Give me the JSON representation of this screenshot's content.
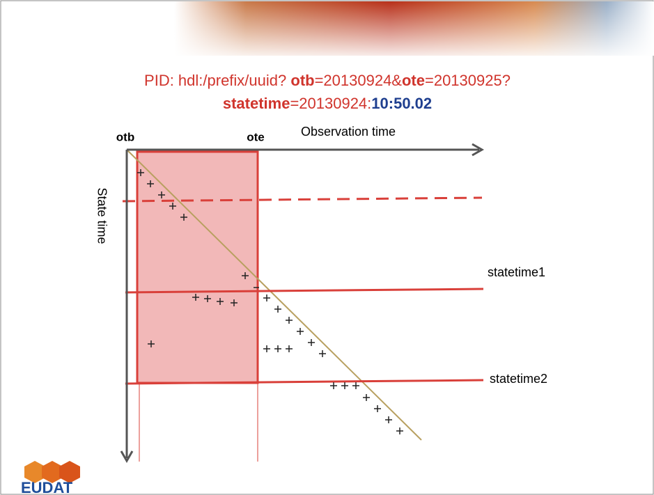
{
  "title": {
    "line1": [
      {
        "text": "PID: hdl:/prefix/uuid? ",
        "bold": false
      },
      {
        "text": "otb",
        "bold": true
      },
      {
        "text": "=20130924&",
        "bold": false
      },
      {
        "text": "ote",
        "bold": true
      },
      {
        "text": "=20130925?",
        "bold": false
      }
    ],
    "line2": [
      {
        "text": "statetime",
        "bold": true
      },
      {
        "text": "=20130924:",
        "bold": false
      },
      {
        "text": "10:50.02",
        "bold": true
      }
    ]
  },
  "diagram": {
    "otb_label": "otb",
    "ote_label": "ote",
    "x_axis_label": "Observation time",
    "y_axis_label": "State time",
    "statetime1": "statetime1",
    "statetime2": "statetime2"
  },
  "logo": "EUDAT"
}
